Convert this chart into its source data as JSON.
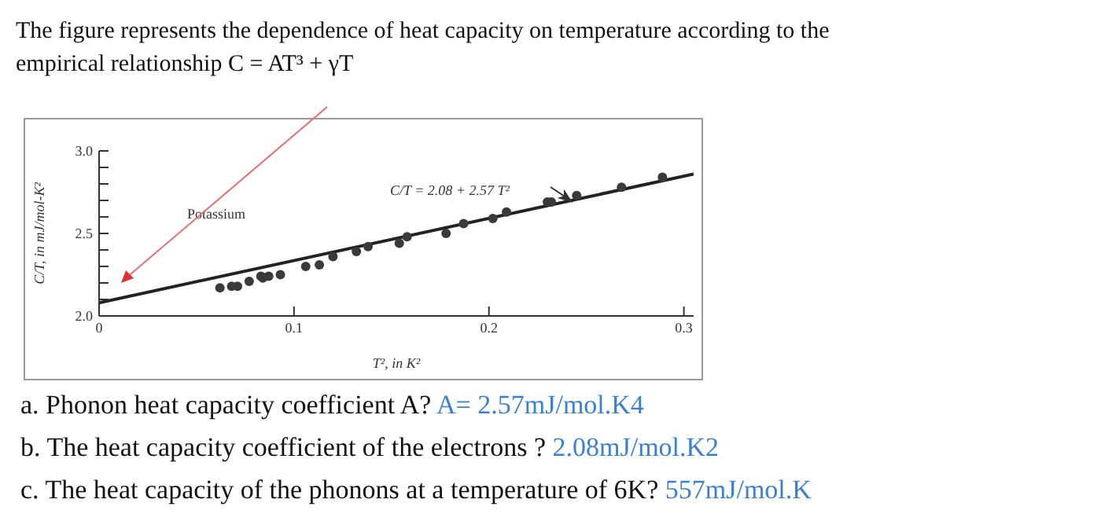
{
  "chart_data": {
    "type": "scatter",
    "title": "The figure represents the dependence of heat capacity on temperature according to the empirical relationship C = AT³ + γT",
    "xlabel": "T², in K²",
    "ylabel": "C/T, in mJ/mol-K²",
    "annotations": [
      "Potassium",
      "C/T = 2.08 + 2.57 T²",
      "a. Phonon heat capacity coefficient A?",
      "A= 2.57mJ/mol.K4",
      "b. The heat capacity coefficient of the electrons ?",
      "2.08mJ/mol.K2",
      "c. The heat capacity of the phonons at a temperature of 6K?",
      "557mJ/mol.K"
    ],
    "xlim": [
      0,
      0.305
    ],
    "xticks": [
      0,
      0.1,
      0.2,
      0.3
    ],
    "ylim": [
      2.0,
      3.0
    ],
    "yticks": [
      {
        "value": 2.0,
        "label": "2.0"
      },
      {
        "value": 2.1,
        "label": null
      },
      {
        "value": 2.2,
        "label": null
      },
      {
        "value": 2.3,
        "label": null
      },
      {
        "value": 2.4,
        "label": null
      },
      {
        "value": 2.5,
        "label": "2.5"
      },
      {
        "value": 2.6,
        "label": null
      },
      {
        "value": 2.7,
        "label": null
      },
      {
        "value": 2.8,
        "label": null
      },
      {
        "value": 2.9,
        "label": null
      },
      {
        "value": 3.0,
        "label": "3.0"
      }
    ],
    "series": [
      {
        "marker": "circle",
        "color": "#3a3a3a",
        "x": [
          0.062,
          0.068,
          0.071,
          0.077,
          0.083,
          0.084,
          0.087,
          0.093,
          0.106,
          0.113,
          0.12,
          0.132,
          0.138,
          0.154,
          0.158,
          0.178,
          0.187,
          0.202,
          0.209,
          0.23,
          0.232,
          0.245,
          0.268,
          0.289
        ],
        "values": [
          2.17,
          2.18,
          2.18,
          2.21,
          2.24,
          2.23,
          2.24,
          2.25,
          2.3,
          2.31,
          2.36,
          2.39,
          2.42,
          2.44,
          2.48,
          2.5,
          2.56,
          2.59,
          2.63,
          2.69,
          2.69,
          2.73,
          2.78,
          2.84
        ]
      },
      {
        "type": "line",
        "marker": "none",
        "color": "#222222",
        "line_style": "solid",
        "x": [
          0,
          0.305
        ],
        "values": [
          2.08,
          2.86
        ]
      }
    ]
  }
}
